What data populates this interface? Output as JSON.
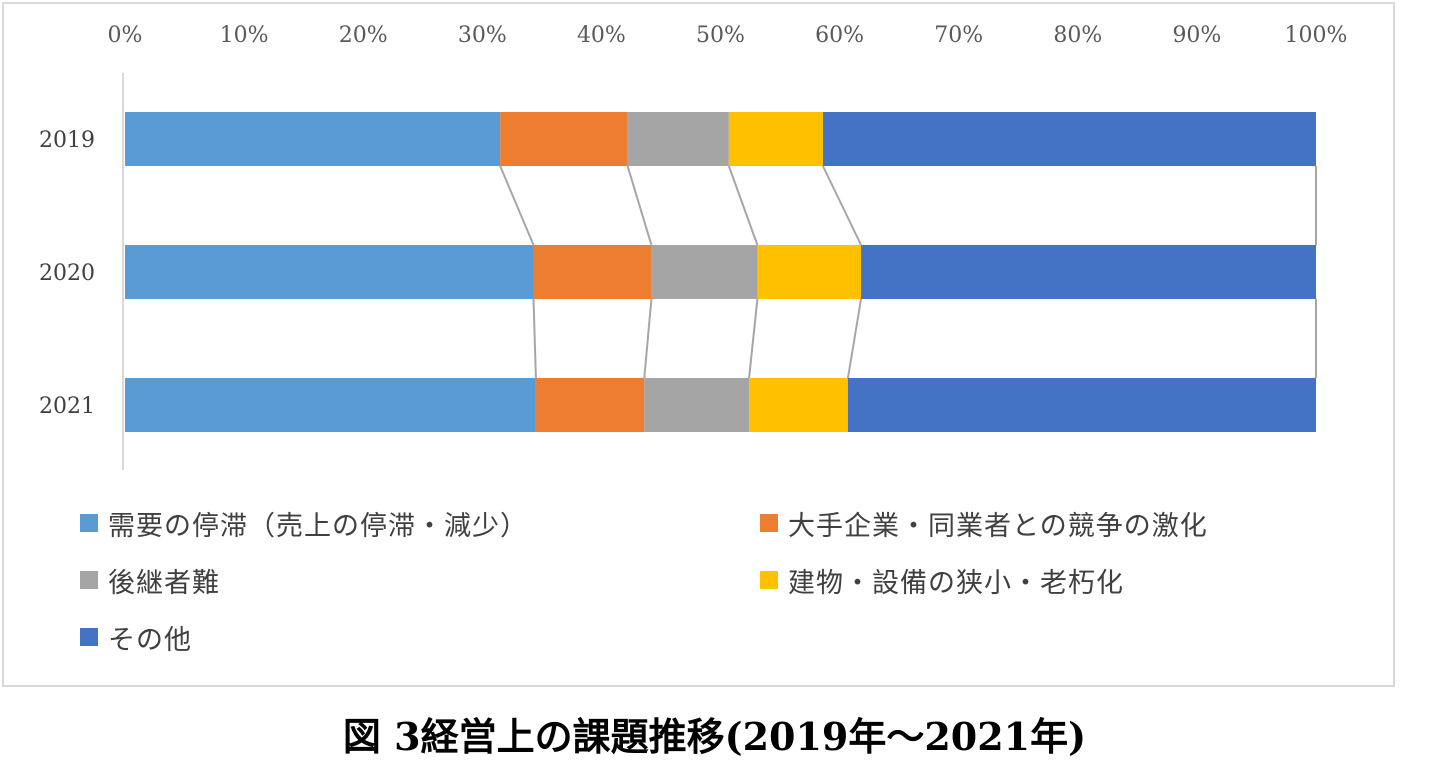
{
  "caption": "図 3経営上の課題推移(2019年～2021年)",
  "chart_data": {
    "type": "bar",
    "orientation": "horizontal",
    "stacked": "percent",
    "categories": [
      "2019",
      "2020",
      "2021"
    ],
    "x_ticks": [
      "0%",
      "10%",
      "20%",
      "30%",
      "40%",
      "50%",
      "60%",
      "70%",
      "80%",
      "90%",
      "100%"
    ],
    "xlim": [
      0,
      100
    ],
    "grid": false,
    "series_lines": true,
    "legend_position": "bottom",
    "series": [
      {
        "name": "需要の停滞（売上の停滞・減少）",
        "color": "#5b9bd5",
        "values": [
          31.5,
          34.3,
          34.5
        ]
      },
      {
        "name": "大手企業・同業者との競争の激化",
        "color": "#ed7d31",
        "values": [
          10.7,
          9.9,
          9.1
        ]
      },
      {
        "name": "後継者難",
        "color": "#a5a5a5",
        "values": [
          8.5,
          8.9,
          8.8
        ]
      },
      {
        "name": "建物・設備の狭小・老朽化",
        "color": "#ffc000",
        "values": [
          7.9,
          8.7,
          8.3
        ]
      },
      {
        "name": "その他",
        "color": "#4472c4",
        "values": [
          41.4,
          38.2,
          39.3
        ]
      }
    ]
  }
}
